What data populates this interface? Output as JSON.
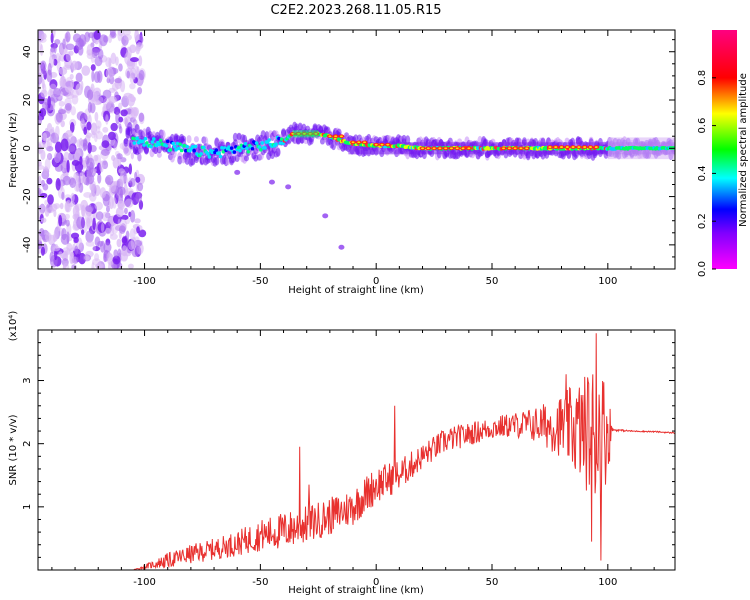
{
  "figure": {
    "title": "C2E2.2023.268.11.05.R15"
  },
  "chart_data": [
    {
      "type": "heatmap",
      "title": "C2E2.2023.268.11.05.R15",
      "xlabel": "Height of straight line (km)",
      "ylabel": "Frequency (Hz)",
      "xlim": [
        -146,
        129
      ],
      "ylim": [
        -50,
        49
      ],
      "xticks": [
        -100,
        -50,
        0,
        50,
        100
      ],
      "yticks": [
        -40,
        -20,
        0,
        20,
        40
      ],
      "grid": false,
      "colorbar": {
        "label": "Normalized spectral amplitude",
        "range": [
          0,
          1
        ],
        "ticks": [
          "0.0",
          "0.2",
          "0.4",
          "0.6",
          "0.8"
        ],
        "colormap": "hsv (magenta-blue-cyan-green-yellow-red-pink)"
      },
      "features": [
        {
          "name": "signal trace",
          "x": [
            -105,
            -90,
            -80,
            -70,
            -60,
            -50,
            -40,
            -36,
            -30,
            -25,
            -20,
            -15,
            -10,
            0,
            10,
            20,
            30,
            50,
            70,
            90,
            100,
            129
          ],
          "y": [
            4,
            1,
            -1,
            -2,
            0,
            1,
            3,
            6,
            6,
            6,
            5,
            3,
            2,
            1,
            1,
            0,
            0,
            0,
            0,
            0,
            0,
            0
          ]
        },
        {
          "name": "noise region",
          "x_range": [
            -146,
            -105
          ],
          "y_range": [
            -50,
            49
          ]
        },
        {
          "name": "diagonal streak",
          "x": [
            -60,
            -45,
            -38,
            -22,
            -15
          ],
          "y": [
            -10,
            -14,
            -16,
            -28,
            -41
          ]
        }
      ]
    },
    {
      "type": "line",
      "xlabel": "Height of straight line (km)",
      "ylabel": "SNR (10 * v/v)",
      "y_multiplier": "(x10⁴)",
      "xlim": [
        -146,
        129
      ],
      "ylim": [
        0,
        3.8
      ],
      "xticks": [
        -100,
        -50,
        0,
        50,
        100
      ],
      "yticks": [
        1,
        2,
        3
      ],
      "color": "#e8312f",
      "grid": false,
      "series": [
        {
          "x": [
            -146,
            -105,
            -100,
            -90,
            -80,
            -70,
            -60,
            -50,
            -40,
            -30,
            -20,
            -10,
            0,
            10,
            20,
            30,
            40,
            50,
            60,
            70,
            80,
            90,
            95,
            100,
            102,
            110,
            120,
            129
          ],
          "mean": [
            0.0,
            0.0,
            0.05,
            0.15,
            0.25,
            0.33,
            0.42,
            0.55,
            0.62,
            0.72,
            0.85,
            1.0,
            1.35,
            1.5,
            1.8,
            2.05,
            2.15,
            2.25,
            2.3,
            2.3,
            2.28,
            2.2,
            2.2,
            2.2,
            2.22,
            2.2,
            2.19,
            2.17
          ],
          "amp": [
            0.0,
            0.0,
            0.03,
            0.12,
            0.15,
            0.17,
            0.2,
            0.25,
            0.3,
            0.3,
            0.3,
            0.3,
            0.3,
            0.25,
            0.2,
            0.2,
            0.18,
            0.18,
            0.2,
            0.3,
            0.5,
            0.9,
            1.2,
            0.8,
            0.02,
            0.01,
            0.01,
            0.01
          ]
        }
      ],
      "spikes": [
        [
          -33,
          1.95
        ],
        [
          -29,
          1.35
        ],
        [
          8,
          2.6
        ],
        [
          82,
          3.1
        ],
        [
          95,
          3.75
        ],
        [
          97,
          0.15
        ],
        [
          93,
          0.45
        ]
      ]
    }
  ]
}
